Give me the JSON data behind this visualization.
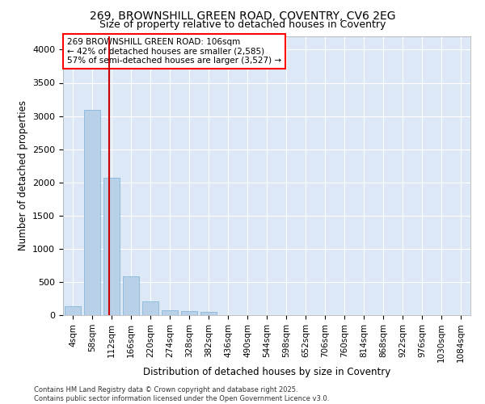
{
  "title_line1": "269, BROWNSHILL GREEN ROAD, COVENTRY, CV6 2EG",
  "title_line2": "Size of property relative to detached houses in Coventry",
  "xlabel": "Distribution of detached houses by size in Coventry",
  "ylabel": "Number of detached properties",
  "bar_color": "#b8d0e8",
  "bar_edge_color": "#7aafd4",
  "background_color": "#dce8f5",
  "grid_color": "#ffffff",
  "annotation_title": "269 BROWNSHILL GREEN ROAD: 106sqm",
  "annotation_line1": "← 42% of detached houses are smaller (2,585)",
  "annotation_line2": "57% of semi-detached houses are larger (3,527) →",
  "red_line_color": "#cc0000",
  "categories": [
    "4sqm",
    "58sqm",
    "112sqm",
    "166sqm",
    "220sqm",
    "274sqm",
    "328sqm",
    "382sqm",
    "436sqm",
    "490sqm",
    "544sqm",
    "598sqm",
    "652sqm",
    "706sqm",
    "760sqm",
    "814sqm",
    "868sqm",
    "922sqm",
    "976sqm",
    "1030sqm",
    "1084sqm"
  ],
  "values": [
    140,
    3090,
    2070,
    580,
    210,
    75,
    55,
    45,
    0,
    0,
    0,
    0,
    0,
    0,
    0,
    0,
    0,
    0,
    0,
    0,
    0
  ],
  "ylim": [
    0,
    4200
  ],
  "yticks": [
    0,
    500,
    1000,
    1500,
    2000,
    2500,
    3000,
    3500,
    4000
  ],
  "footer_line1": "Contains HM Land Registry data © Crown copyright and database right 2025.",
  "footer_line2": "Contains public sector information licensed under the Open Government Licence v3.0."
}
